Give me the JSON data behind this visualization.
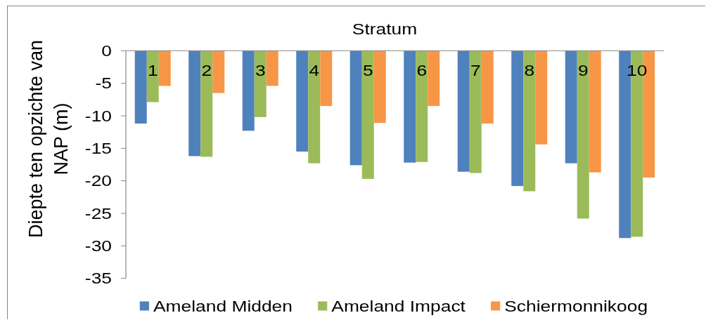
{
  "chart_data": {
    "type": "bar",
    "xlabel": "Stratum",
    "ylabel": "Diepte ten opzichte van NAP (m)",
    "categories": [
      "1",
      "2",
      "3",
      "4",
      "5",
      "6",
      "7",
      "8",
      "9",
      "10"
    ],
    "series": [
      {
        "name": "Ameland Midden",
        "color": "#4f81bd",
        "values": [
          -11.2,
          -16.2,
          -12.3,
          -15.5,
          -17.6,
          -17.2,
          -18.6,
          -20.8,
          -17.3,
          -28.8
        ]
      },
      {
        "name": "Ameland Impact",
        "color": "#9bbb59",
        "values": [
          -7.9,
          -16.3,
          -10.2,
          -17.3,
          -19.7,
          -17.1,
          -18.8,
          -21.6,
          -25.8,
          -28.6
        ]
      },
      {
        "name": "Schiermonnikoog",
        "color": "#f79646",
        "values": [
          -5.4,
          -6.5,
          -5.4,
          -8.5,
          -11.1,
          -8.5,
          -11.2,
          -14.4,
          -18.7,
          -19.5
        ]
      }
    ],
    "ylim": [
      -35,
      0
    ],
    "yticks": [
      -35,
      -30,
      -25,
      -20,
      -15,
      -10,
      -5,
      0
    ],
    "grid": false,
    "legend": "bottom"
  }
}
